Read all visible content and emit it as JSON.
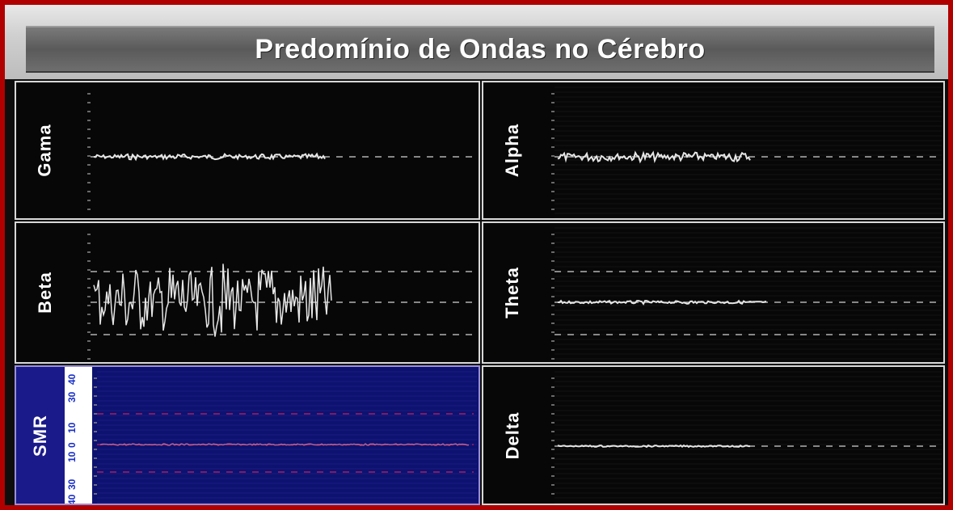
{
  "window": {
    "title": "Predomínio de Ondas no Cérebro"
  },
  "panels": [
    {
      "id": "gama",
      "label": "Gama"
    },
    {
      "id": "alpha",
      "label": "Alpha"
    },
    {
      "id": "beta",
      "label": "Beta"
    },
    {
      "id": "theta",
      "label": "Theta"
    },
    {
      "id": "smr",
      "label": "SMR",
      "scale": [
        "40",
        "30",
        "10",
        "0",
        "10",
        "30",
        "40"
      ]
    },
    {
      "id": "delta",
      "label": "Delta"
    }
  ],
  "colors": {
    "background": "#b00000",
    "panel": "#070707",
    "smr_panel": "#0d1270",
    "trace": "#e6e6e6"
  }
}
